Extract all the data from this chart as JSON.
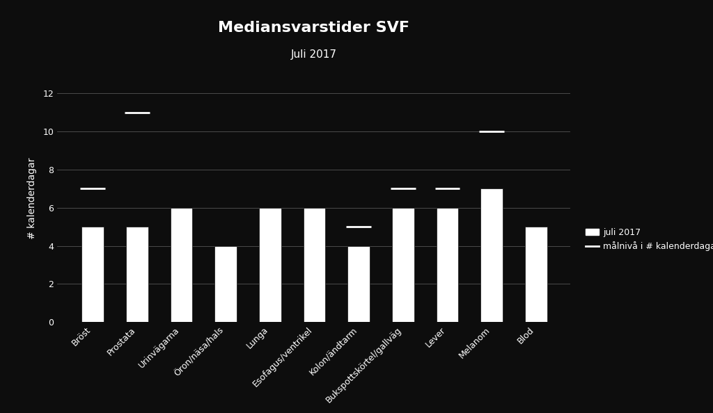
{
  "title": "Mediansvarstider SVF",
  "subtitle": "Juli 2017",
  "ylabel": "# kalenderdagar",
  "categories": [
    "Bröst",
    "Prostata",
    "Urinvägarna",
    "Öron/näsa/hals",
    "Lunga",
    "Esofagus/ventrikel",
    "Kolon/ändtarm",
    "Bukspottskörtel/gallväg",
    "Lever",
    "Melanom",
    "Blod"
  ],
  "bar_values": [
    5,
    5,
    6,
    4,
    6,
    6,
    4,
    6,
    6,
    7,
    5
  ],
  "target_values": [
    7,
    11,
    null,
    null,
    null,
    null,
    5,
    7,
    7,
    10,
    null
  ],
  "bar_color": "#ffffff",
  "background_color": "#0d0d0d",
  "text_color": "#ffffff",
  "grid_color": "#555555",
  "ylim": [
    0,
    13
  ],
  "yticks": [
    0,
    2,
    4,
    6,
    8,
    10,
    12
  ],
  "legend_bar_label": "juli 2017",
  "legend_line_label": "målnivå i # kalenderdagar",
  "title_fontsize": 16,
  "subtitle_fontsize": 11,
  "axis_label_fontsize": 10,
  "tick_fontsize": 9,
  "legend_fontsize": 9
}
